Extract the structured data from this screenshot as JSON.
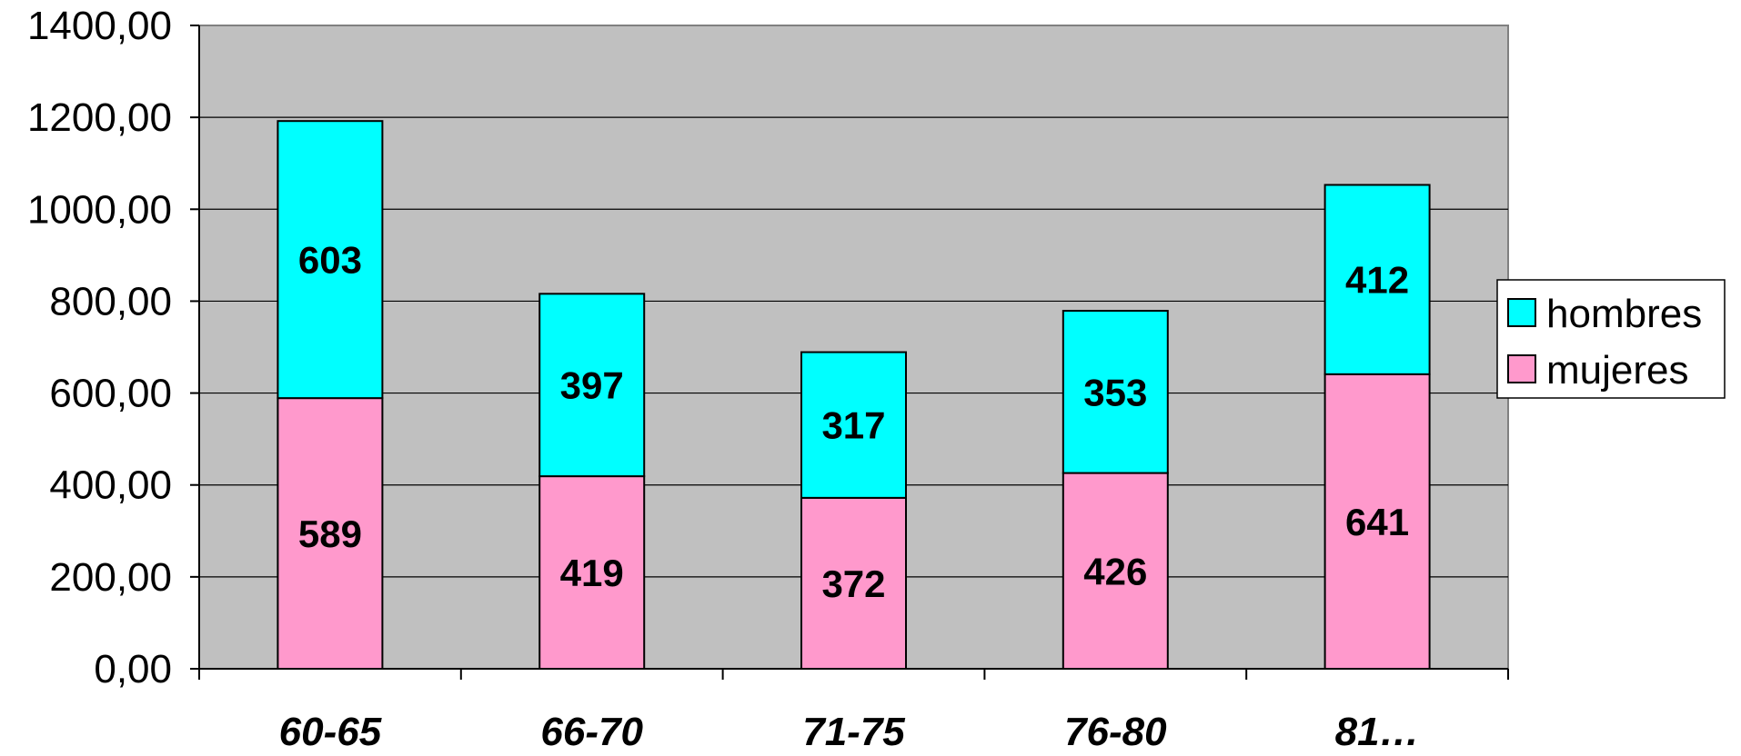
{
  "chart_data": {
    "type": "bar",
    "stacked": true,
    "categories": [
      "60-65",
      "66-70",
      "71-75",
      "76-80",
      "81…"
    ],
    "series": [
      {
        "name": "mujeres",
        "values": [
          589,
          419,
          372,
          426,
          641
        ],
        "color": "#FF99CC"
      },
      {
        "name": "hombres",
        "values": [
          603,
          397,
          317,
          353,
          412
        ],
        "color": "#00FFFF"
      }
    ],
    "data_labels": [
      [
        "589",
        "419",
        "372",
        "426",
        "641"
      ],
      [
        "603",
        "397",
        "317",
        "353",
        "412"
      ]
    ],
    "y_tick_labels": [
      "0,00",
      "200,00",
      "400,00",
      "600,00",
      "800,00",
      "1000,00",
      "1200,00",
      "1400,00"
    ],
    "ylim": [
      0,
      1400
    ],
    "grid": true,
    "legend_position": "right",
    "legend_order": [
      "hombres",
      "mujeres"
    ],
    "plot_background": "#C0C0C0"
  }
}
